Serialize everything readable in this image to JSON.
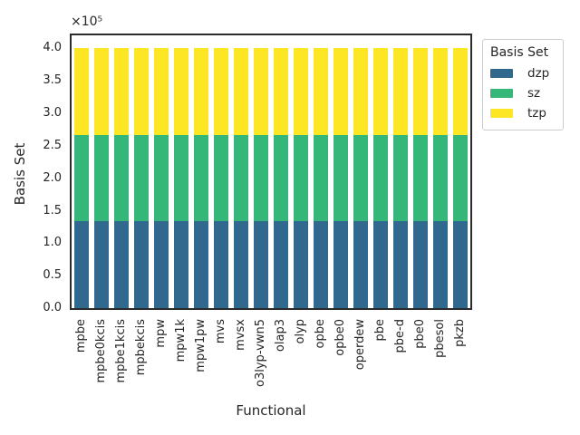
{
  "chart_data": {
    "type": "bar",
    "stacked": true,
    "xlabel": "Functional",
    "ylabel": "Basis Set",
    "y_offset_text": "×10⁵",
    "grid": false,
    "categories": [
      "mpbe",
      "mpbe0kcis",
      "mpbe1kcis",
      "mpbekcis",
      "mpw",
      "mpw1k",
      "mpw1pw",
      "mvs",
      "mvsx",
      "o3lyp-vwn5",
      "olap3",
      "olyp",
      "opbe",
      "opbe0",
      "operdew",
      "pbe",
      "pbe-d",
      "pbe0",
      "pbesol",
      "pkzb"
    ],
    "series": [
      {
        "name": "dzp",
        "color": "#31688e",
        "values": [
          133333,
          133333,
          133333,
          133333,
          133333,
          133333,
          133333,
          133333,
          133333,
          133333,
          133333,
          133333,
          133333,
          133333,
          133333,
          133333,
          133333,
          133333,
          133333,
          133333
        ]
      },
      {
        "name": "sz",
        "color": "#35b779",
        "values": [
          133333,
          133333,
          133333,
          133333,
          133333,
          133333,
          133333,
          133333,
          133333,
          133333,
          133333,
          133333,
          133333,
          133333,
          133333,
          133333,
          133333,
          133333,
          133333,
          133333
        ]
      },
      {
        "name": "tzp",
        "color": "#fde725",
        "values": [
          133334,
          133334,
          133334,
          133334,
          133334,
          133334,
          133334,
          133334,
          133334,
          133334,
          133334,
          133334,
          133334,
          133334,
          133334,
          133334,
          133334,
          133334,
          133334,
          133334
        ]
      }
    ],
    "bar_total": 400000,
    "ylim": [
      0,
      420000
    ],
    "yticks": [
      0,
      50000,
      100000,
      150000,
      200000,
      250000,
      300000,
      350000,
      400000
    ],
    "ytick_labels": [
      "0.0",
      "0.5",
      "1.0",
      "1.5",
      "2.0",
      "2.5",
      "3.0",
      "3.5",
      "4.0"
    ],
    "legend": {
      "title": "Basis Set",
      "position": "upper-right-outside"
    }
  }
}
